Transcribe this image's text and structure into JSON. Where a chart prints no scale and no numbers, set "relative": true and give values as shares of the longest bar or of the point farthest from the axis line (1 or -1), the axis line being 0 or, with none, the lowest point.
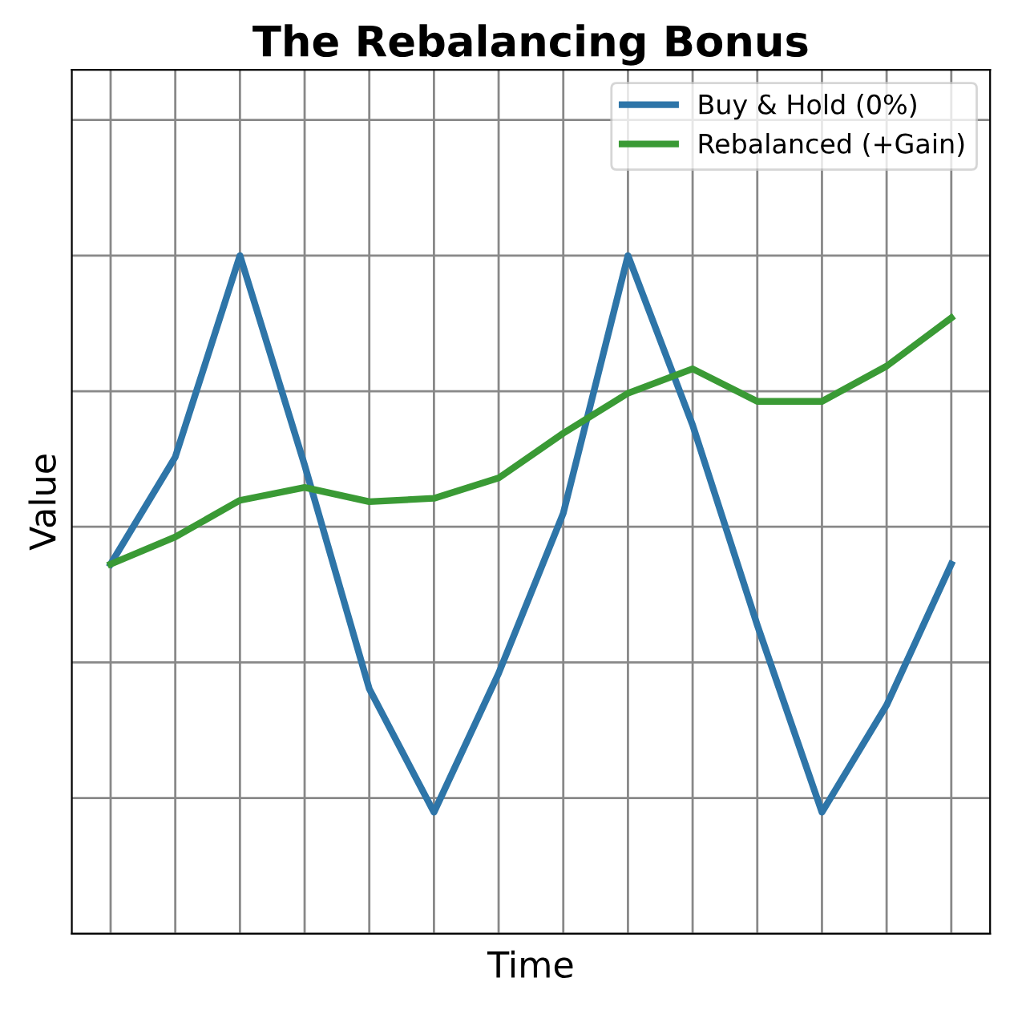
{
  "chart_data": {
    "type": "line",
    "title": "The Rebalancing Bonus",
    "xlabel": "Time",
    "ylabel": "Value",
    "relative": true,
    "categories": [
      null,
      null,
      null,
      null,
      null,
      null,
      null,
      null,
      null,
      null,
      null,
      null,
      null,
      null
    ],
    "series": [
      {
        "name": "Buy & Hold (0%)",
        "color": "#2e75a8",
        "values": [
          0.545,
          0.703,
          1,
          0.691,
          0.361,
          0.179,
          0.384,
          0.62,
          1,
          0.75,
          0.455,
          0.179,
          0.337,
          0.545
        ]
      },
      {
        "name": "Rebalanced (+Gain)",
        "color": "#3a9a35",
        "values": [
          0.545,
          0.585,
          0.639,
          0.658,
          0.637,
          0.642,
          0.672,
          0.738,
          0.797,
          0.833,
          0.785,
          0.785,
          0.837,
          0.908
        ]
      }
    ],
    "grid": true,
    "legend": "top right",
    "marker": "none",
    "line_style": "solid"
  }
}
